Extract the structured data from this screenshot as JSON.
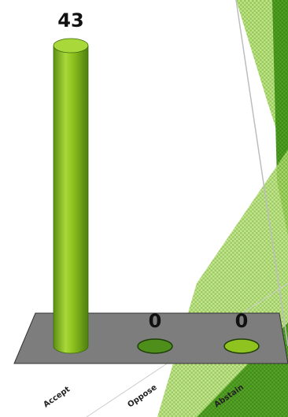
{
  "chart_data": {
    "type": "bar",
    "categories": [
      "Accept",
      "Oppose",
      "Abstain"
    ],
    "values": [
      43,
      0,
      0
    ],
    "value_labels": [
      "43",
      "0",
      "0"
    ],
    "ylim": [
      0,
      43
    ],
    "grid": false,
    "legend": "none",
    "three_d": true,
    "colors": [
      "#8fc31f",
      "#4e8f1c",
      "#8fc31f"
    ]
  },
  "background": {
    "accent_dark": "#4fa020",
    "accent_light": "#a6d85a",
    "floor_color": "#7d7d7d"
  }
}
